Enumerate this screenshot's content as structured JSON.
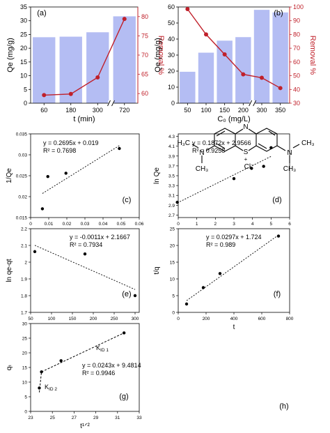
{
  "chart_data": [
    {
      "id": "a",
      "panel_label": "(a)",
      "type": "bar+line",
      "categories": [
        "60",
        "180",
        "300",
        "720"
      ],
      "axis_break": true,
      "series": [
        {
          "name": "Qe",
          "kind": "bar",
          "axis": "left",
          "values": [
            24.0,
            24.2,
            25.8,
            31.6
          ]
        },
        {
          "name": "Removal %",
          "kind": "line",
          "axis": "right",
          "values": [
            59.6,
            59.9,
            64.2,
            79.4
          ]
        }
      ],
      "xlabel": "t (min)",
      "ylabel": "Qe (mg/g)",
      "y2label": "Removal %",
      "ylim": [
        0,
        35
      ],
      "y2lim": [
        57.5,
        82.5
      ],
      "yticks": [
        0,
        5,
        10,
        15,
        20,
        25,
        30,
        35
      ],
      "y2ticks": [
        60,
        65,
        70,
        75,
        80
      ],
      "colors": {
        "bar": "#b4bdf3",
        "line": "#c0202a",
        "right_axis": "#c0202a"
      }
    },
    {
      "id": "b",
      "panel_label": "(b)",
      "type": "bar+line",
      "categories": [
        "50",
        "100",
        "150",
        "200",
        "300",
        "350"
      ],
      "axis_break": true,
      "series": [
        {
          "name": "Qe",
          "kind": "bar",
          "axis": "left",
          "values": [
            19.6,
            31.5,
            39.0,
            41.2,
            58.2,
            56.6
          ]
        },
        {
          "name": "Removal %",
          "kind": "line",
          "axis": "right",
          "values": [
            98.5,
            80.0,
            65.5,
            51.0,
            48.5,
            41.0
          ]
        }
      ],
      "xlabel": "C₀ (mg/L)",
      "ylabel": "Qe (mg/g)",
      "y2label": "Removal %",
      "ylim": [
        0,
        60
      ],
      "y2lim": [
        30,
        100
      ],
      "yticks": [
        0,
        10,
        20,
        30,
        40,
        50,
        60
      ],
      "y2ticks": [
        30,
        40,
        50,
        60,
        70,
        80,
        90,
        100
      ],
      "colors": {
        "bar": "#b4bdf3",
        "line": "#c0202a",
        "right_axis": "#c0202a"
      }
    },
    {
      "id": "c",
      "panel_label": "(c)",
      "type": "scatter",
      "x": [
        0.0065,
        0.0095,
        0.0195,
        0.049
      ],
      "y": [
        0.0171,
        0.0248,
        0.0256,
        0.0315
      ],
      "fit": {
        "slope": 0.2695,
        "intercept": 0.019,
        "xrange": [
          0.0065,
          0.049
        ]
      },
      "annotations": [
        "y = 0.2695x + 0.019",
        "R² = 0.7698"
      ],
      "xlabel": "1/Ce",
      "ylabel": "1/Qe",
      "xlim": [
        0,
        0.06
      ],
      "ylim": [
        0.015,
        0.035
      ],
      "xticks": [
        0,
        0.01,
        0.02,
        0.03,
        0.04,
        0.05,
        0.06
      ],
      "yticks": [
        0.015,
        0.02,
        0.025,
        0.03,
        0.035
      ]
    },
    {
      "id": "d",
      "panel_label": "(d)",
      "type": "scatter",
      "x": [
        -0.05,
        3.0,
        3.95,
        4.6,
        5.0
      ],
      "y": [
        2.96,
        3.44,
        3.65,
        3.69,
        4.07
      ],
      "fit": {
        "slope": 0.1872,
        "intercept": 2.9566,
        "xrange": [
          -0.05,
          5.0
        ]
      },
      "annotations": [
        "y = 0.1872x + 2.9566",
        "R² = 0.9258"
      ],
      "xlabel": "ln Ce",
      "ylabel": "ln Qe",
      "xlim": [
        0,
        6
      ],
      "ylim": [
        2.65,
        4.35
      ],
      "xticks": [
        0,
        1,
        2,
        3,
        4,
        5,
        6
      ],
      "yticks": [
        2.7,
        2.9,
        3.1,
        3.3,
        3.5,
        3.7,
        3.9,
        4.1,
        4.3
      ]
    },
    {
      "id": "e",
      "panel_label": "(e)",
      "type": "scatter",
      "x": [
        60,
        180,
        300
      ],
      "y": [
        2.063,
        2.049,
        1.8
      ],
      "fit": {
        "slope": -0.0011,
        "intercept": 2.1667,
        "xrange": [
          60,
          300
        ]
      },
      "annotations": [
        "y = -0.0011x + 2.1667",
        "R² = 0.7934"
      ],
      "xlabel": "t",
      "ylabel": "ln qe-qt",
      "xlim": [
        50,
        310
      ],
      "ylim": [
        1.7,
        2.2
      ],
      "xticks": [
        0,
        50,
        100,
        150,
        200,
        250,
        300
      ],
      "yticks": [
        1.7,
        1.8,
        1.9,
        2.0,
        2.1,
        2.2
      ],
      "ytick_labels": [
        "1.7",
        "1.8",
        "1.9",
        "2",
        "2.1",
        "2.2"
      ]
    },
    {
      "id": "f",
      "panel_label": "(f)",
      "type": "scatter",
      "x": [
        60,
        180,
        300,
        720
      ],
      "y": [
        2.5,
        7.4,
        11.6,
        22.8
      ],
      "fit": {
        "slope": 0.0297,
        "intercept": 1.724,
        "xrange": [
          60,
          720
        ]
      },
      "annotations": [
        "y = 0.0297x + 1.724",
        "R² = 0.989"
      ],
      "xlabel": "t",
      "ylabel": "t/q",
      "xlim": [
        0,
        800
      ],
      "ylim": [
        0,
        25
      ],
      "xticks": [
        0,
        200,
        400,
        600,
        800
      ],
      "yticks": [
        0,
        5,
        10,
        15,
        20,
        25
      ]
    },
    {
      "id": "g",
      "panel_label": "(g)",
      "type": "scatter",
      "x": [
        23.8,
        24.0,
        25.8,
        31.6
      ],
      "y": [
        8.0,
        13.5,
        17.3,
        26.8
      ],
      "fit": {
        "slope": 0.0243,
        "intercept": 9.4814
      },
      "segments": [
        {
          "label": "KID 2",
          "x": [
            23.8,
            24.0
          ],
          "y": [
            6.5,
            13.5
          ]
        },
        {
          "label": "KID 1",
          "x": [
            24.0,
            31.6
          ],
          "y": [
            13.5,
            26.8
          ]
        }
      ],
      "annotations": [
        "y = 0.0243x + 9.4814",
        "R² = 0.9946"
      ],
      "segment_labels": [
        "K",
        "ID 1",
        "K",
        "ID 2"
      ],
      "xlabel": "t¹ᐟ²",
      "ylabel": "qₜ",
      "xlim": [
        23,
        33
      ],
      "ylim": [
        0,
        30
      ],
      "xticks": [
        23,
        25,
        27,
        29,
        31,
        33
      ],
      "yticks": [
        0,
        5,
        10,
        15,
        20,
        25,
        30
      ]
    }
  ],
  "structure": {
    "panel_label": "(h)",
    "atoms": {
      "h3c_left": "H₃C",
      "ch3_right": "CH₃",
      "ch3_left_lower": "CH₃",
      "ch3_right_lower": "CH₃",
      "n_left": "N",
      "n_right": "N",
      "n_top": "N",
      "s": "S",
      "plus": "+",
      "chloride": "Cl⁻"
    }
  }
}
